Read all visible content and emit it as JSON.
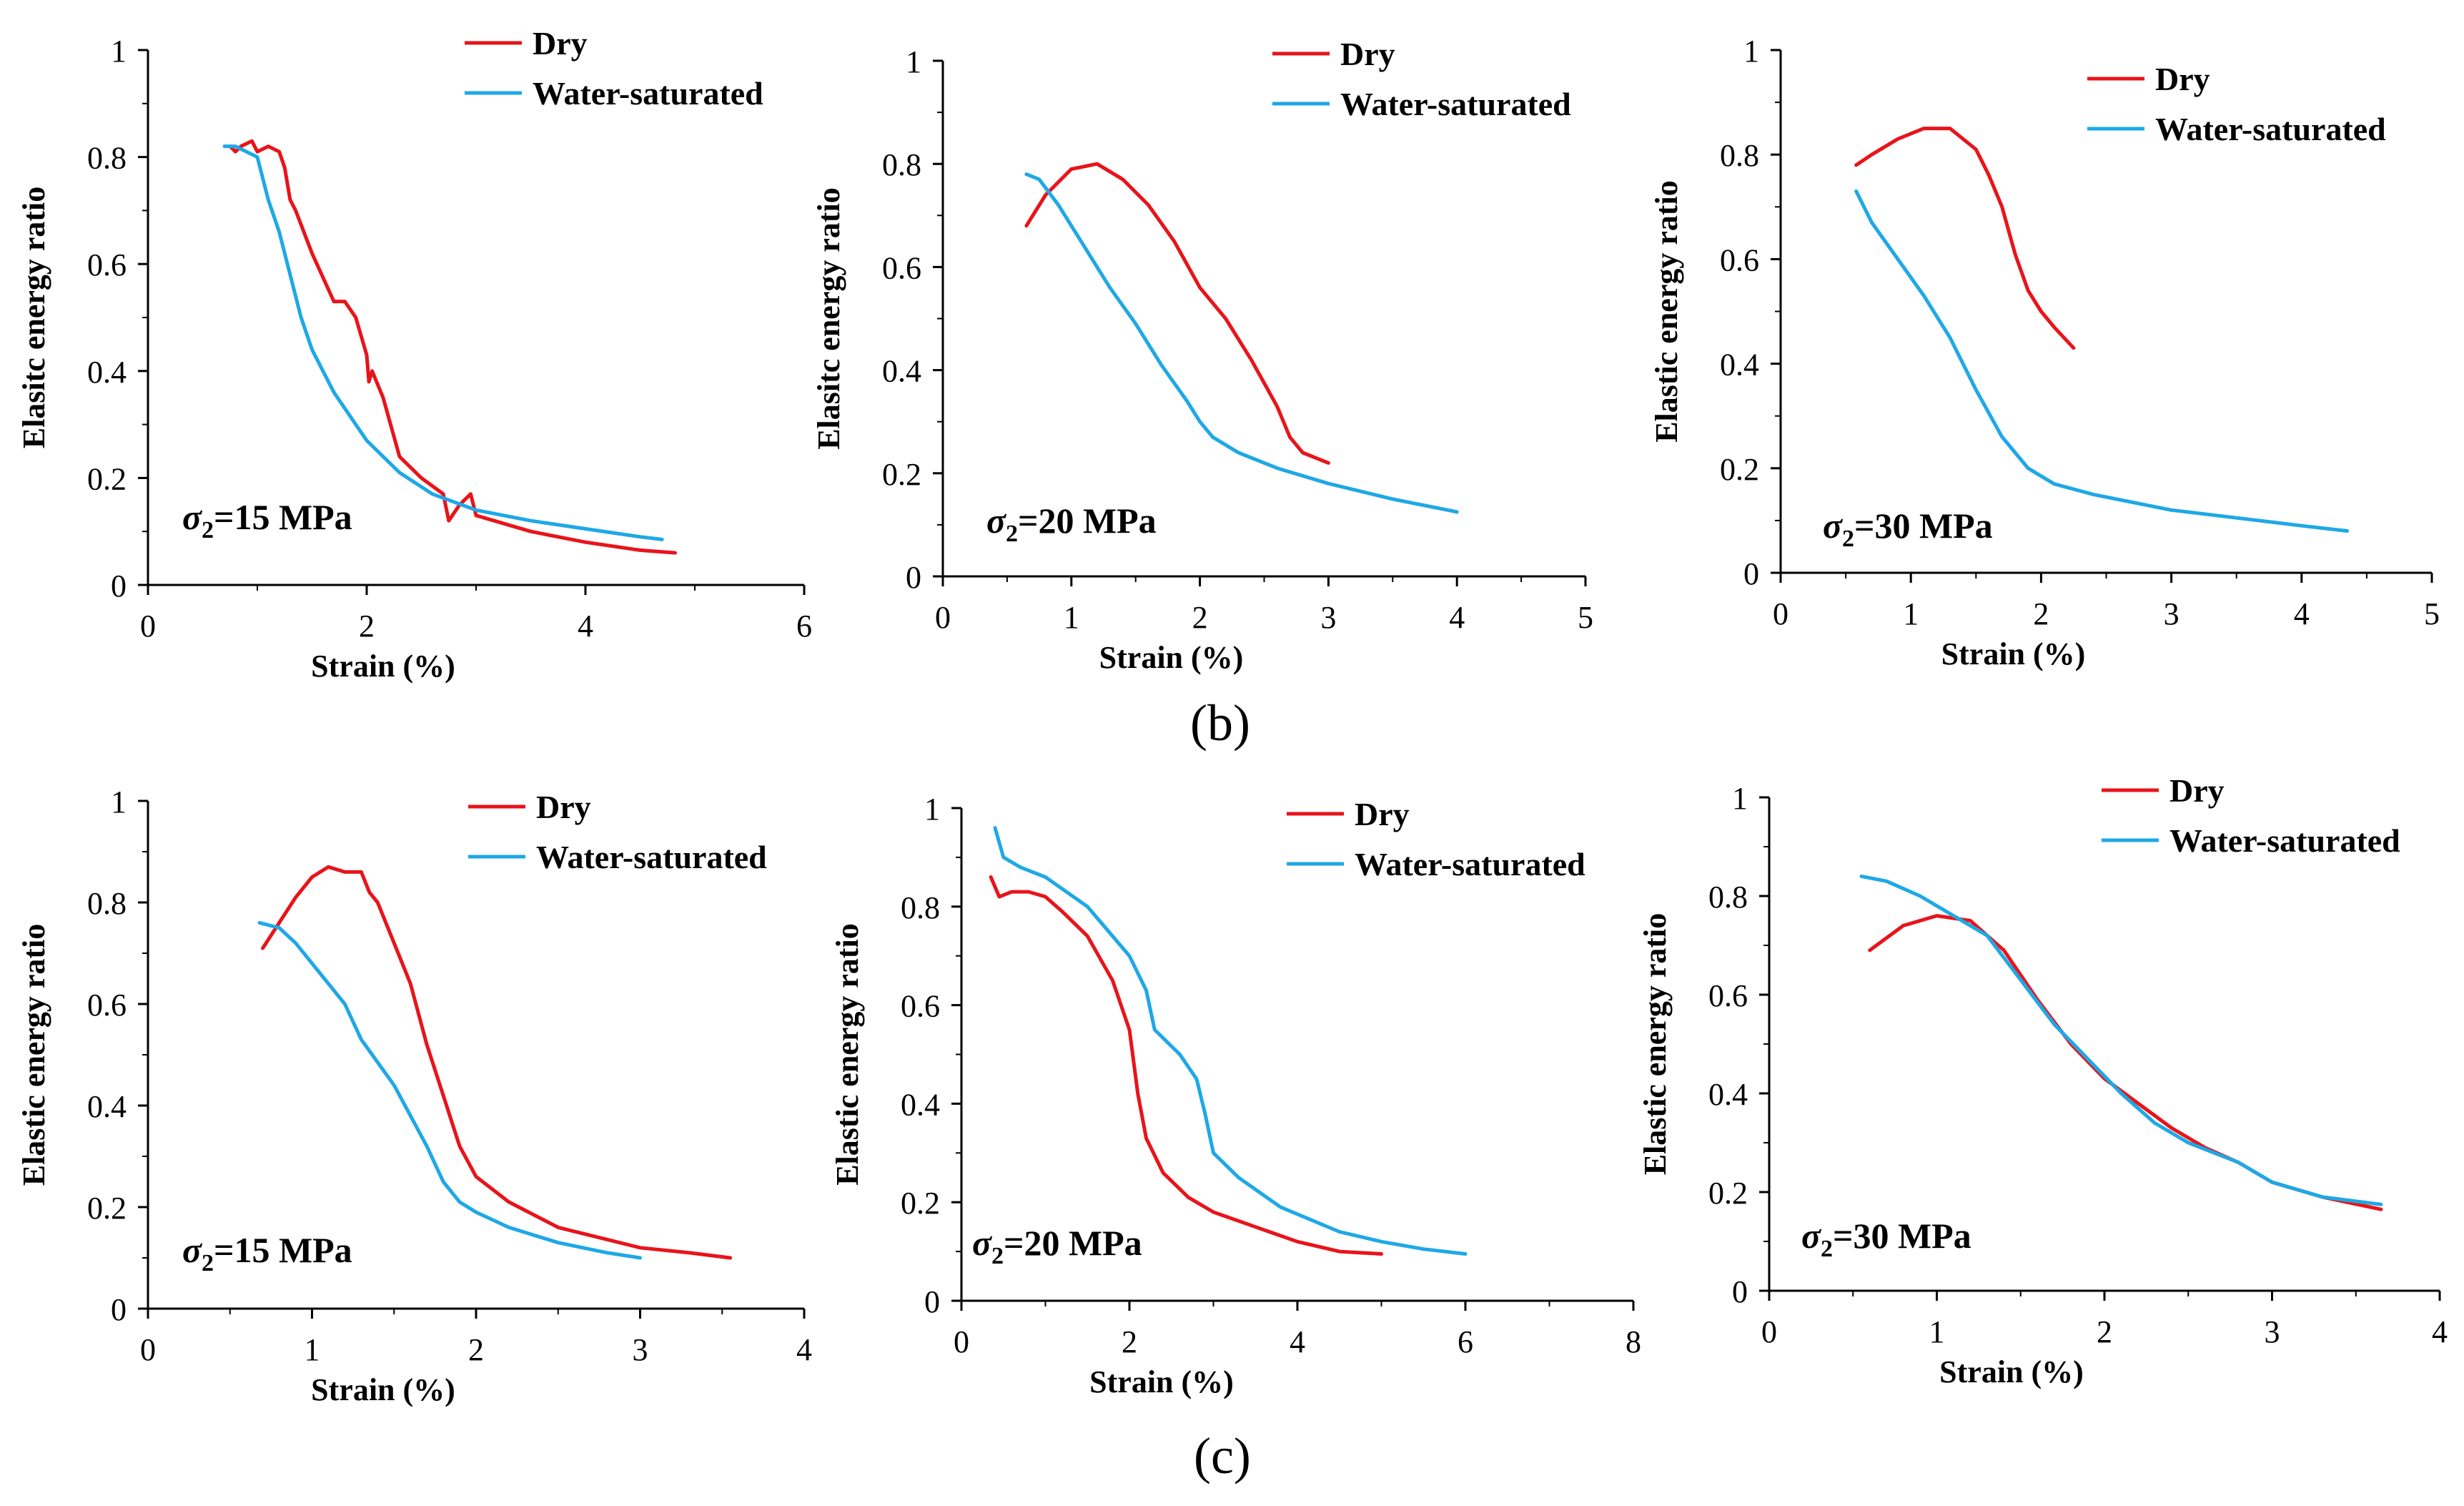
{
  "panel_labels": {
    "b": "(b)",
    "c": "(c)"
  },
  "colors": {
    "dry": "#e8141a",
    "water": "#1ea8e6",
    "axis": "#000000"
  },
  "chart_data": [
    {
      "type": "line",
      "panel": "b",
      "annotation_prefix": "σ",
      "annotation_sub": "2",
      "annotation_value": "=15 MPa",
      "xlabel": "Strain (%)",
      "ylabel": "Elasitc energy ratio",
      "xlim": [
        0,
        6
      ],
      "ylim": [
        0,
        1
      ],
      "xticks": [
        0,
        2,
        4,
        6
      ],
      "yticks": [
        0,
        0.2,
        0.4,
        0.6,
        0.8,
        1
      ],
      "yticklabels": [
        "0",
        "0.2",
        "0.4",
        "0.6",
        "0.8",
        "1"
      ],
      "legend": "top-right",
      "series": [
        {
          "name": "Dry",
          "color_key": "dry",
          "points": [
            [
              0.75,
              0.82
            ],
            [
              0.8,
              0.81
            ],
            [
              0.85,
              0.82
            ],
            [
              0.95,
              0.83
            ],
            [
              1.0,
              0.81
            ],
            [
              1.1,
              0.82
            ],
            [
              1.2,
              0.81
            ],
            [
              1.25,
              0.78
            ],
            [
              1.3,
              0.72
            ],
            [
              1.35,
              0.7
            ],
            [
              1.5,
              0.62
            ],
            [
              1.7,
              0.53
            ],
            [
              1.8,
              0.53
            ],
            [
              1.9,
              0.5
            ],
            [
              2.0,
              0.43
            ],
            [
              2.02,
              0.38
            ],
            [
              2.05,
              0.4
            ],
            [
              2.15,
              0.35
            ],
            [
              2.3,
              0.24
            ],
            [
              2.5,
              0.2
            ],
            [
              2.7,
              0.17
            ],
            [
              2.75,
              0.12
            ],
            [
              2.85,
              0.15
            ],
            [
              2.95,
              0.17
            ],
            [
              3.0,
              0.13
            ],
            [
              3.5,
              0.1
            ],
            [
              4.0,
              0.08
            ],
            [
              4.5,
              0.065
            ],
            [
              4.82,
              0.06
            ]
          ]
        },
        {
          "name": "Water-saturated",
          "color_key": "water",
          "points": [
            [
              0.7,
              0.82
            ],
            [
              0.8,
              0.82
            ],
            [
              0.9,
              0.81
            ],
            [
              1.0,
              0.8
            ],
            [
              1.1,
              0.72
            ],
            [
              1.2,
              0.66
            ],
            [
              1.3,
              0.58
            ],
            [
              1.4,
              0.5
            ],
            [
              1.5,
              0.44
            ],
            [
              1.7,
              0.36
            ],
            [
              2.0,
              0.27
            ],
            [
              2.3,
              0.21
            ],
            [
              2.6,
              0.17
            ],
            [
              3.0,
              0.14
            ],
            [
              3.5,
              0.12
            ],
            [
              4.0,
              0.105
            ],
            [
              4.5,
              0.09
            ],
            [
              4.7,
              0.085
            ]
          ]
        }
      ]
    },
    {
      "type": "line",
      "panel": "b",
      "annotation_prefix": "σ",
      "annotation_sub": "2",
      "annotation_value": "=20 MPa",
      "xlabel": "Strain (%)",
      "ylabel": "Elasitc energy ratio",
      "xlim": [
        0,
        5
      ],
      "ylim": [
        0,
        1
      ],
      "xticks": [
        0,
        1,
        2,
        3,
        4,
        5
      ],
      "yticks": [
        0,
        0.2,
        0.4,
        0.6,
        0.8,
        1
      ],
      "yticklabels": [
        "0",
        "0.2",
        "0.4",
        "0.6",
        "0.8",
        "1"
      ],
      "legend": "top-right",
      "series": [
        {
          "name": "Dry",
          "color_key": "dry",
          "points": [
            [
              0.65,
              0.68
            ],
            [
              0.8,
              0.74
            ],
            [
              1.0,
              0.79
            ],
            [
              1.2,
              0.8
            ],
            [
              1.4,
              0.77
            ],
            [
              1.6,
              0.72
            ],
            [
              1.8,
              0.65
            ],
            [
              2.0,
              0.56
            ],
            [
              2.2,
              0.5
            ],
            [
              2.4,
              0.42
            ],
            [
              2.6,
              0.33
            ],
            [
              2.7,
              0.27
            ],
            [
              2.8,
              0.24
            ],
            [
              3.0,
              0.22
            ]
          ]
        },
        {
          "name": "Water-saturated",
          "color_key": "water",
          "points": [
            [
              0.65,
              0.78
            ],
            [
              0.75,
              0.77
            ],
            [
              0.9,
              0.72
            ],
            [
              1.1,
              0.64
            ],
            [
              1.3,
              0.56
            ],
            [
              1.5,
              0.49
            ],
            [
              1.7,
              0.41
            ],
            [
              1.9,
              0.34
            ],
            [
              2.0,
              0.3
            ],
            [
              2.1,
              0.27
            ],
            [
              2.3,
              0.24
            ],
            [
              2.6,
              0.21
            ],
            [
              3.0,
              0.18
            ],
            [
              3.5,
              0.15
            ],
            [
              4.0,
              0.125
            ]
          ]
        }
      ]
    },
    {
      "type": "line",
      "panel": "b",
      "annotation_prefix": "σ",
      "annotation_sub": "2",
      "annotation_value": "=30 MPa",
      "xlabel": "Strain (%)",
      "ylabel": "Elastic energy ratio",
      "xlim": [
        0,
        5
      ],
      "ylim": [
        0,
        1
      ],
      "xticks": [
        0,
        1,
        2,
        3,
        4,
        5
      ],
      "yticks": [
        0,
        0.2,
        0.4,
        0.6,
        0.8,
        1
      ],
      "yticklabels": [
        "0",
        "0.2",
        "0.4",
        "0.6",
        "0.8",
        "1"
      ],
      "legend": "top-right",
      "series": [
        {
          "name": "Dry",
          "color_key": "dry",
          "points": [
            [
              0.58,
              0.78
            ],
            [
              0.7,
              0.8
            ],
            [
              0.9,
              0.83
            ],
            [
              1.1,
              0.85
            ],
            [
              1.3,
              0.85
            ],
            [
              1.5,
              0.81
            ],
            [
              1.6,
              0.76
            ],
            [
              1.7,
              0.7
            ],
            [
              1.8,
              0.61
            ],
            [
              1.9,
              0.54
            ],
            [
              2.0,
              0.5
            ],
            [
              2.1,
              0.47
            ],
            [
              2.25,
              0.43
            ]
          ]
        },
        {
          "name": "Water-saturated",
          "color_key": "water",
          "points": [
            [
              0.58,
              0.73
            ],
            [
              0.7,
              0.67
            ],
            [
              0.9,
              0.6
            ],
            [
              1.1,
              0.53
            ],
            [
              1.3,
              0.45
            ],
            [
              1.5,
              0.35
            ],
            [
              1.7,
              0.26
            ],
            [
              1.9,
              0.2
            ],
            [
              2.1,
              0.17
            ],
            [
              2.4,
              0.15
            ],
            [
              3.0,
              0.12
            ],
            [
              3.5,
              0.105
            ],
            [
              4.0,
              0.09
            ],
            [
              4.35,
              0.08
            ]
          ]
        }
      ]
    },
    {
      "type": "line",
      "panel": "c",
      "annotation_prefix": "σ",
      "annotation_sub": "2",
      "annotation_value": "=15 MPa",
      "xlabel": "Strain (%)",
      "ylabel": "Elastic energy ratio",
      "xlim": [
        0,
        4
      ],
      "ylim": [
        0,
        1
      ],
      "xticks": [
        0,
        1,
        2,
        3,
        4
      ],
      "yticks": [
        0,
        0.2,
        0.4,
        0.6,
        0.8,
        1
      ],
      "yticklabels": [
        "0",
        "0.2",
        "0.4",
        "0.6",
        "0.8",
        "1"
      ],
      "legend": "top-right",
      "series": [
        {
          "name": "Dry",
          "color_key": "dry",
          "points": [
            [
              0.7,
              0.71
            ],
            [
              0.8,
              0.76
            ],
            [
              0.9,
              0.81
            ],
            [
              1.0,
              0.85
            ],
            [
              1.1,
              0.87
            ],
            [
              1.2,
              0.86
            ],
            [
              1.3,
              0.86
            ],
            [
              1.35,
              0.82
            ],
            [
              1.4,
              0.8
            ],
            [
              1.5,
              0.72
            ],
            [
              1.6,
              0.64
            ],
            [
              1.7,
              0.52
            ],
            [
              1.8,
              0.42
            ],
            [
              1.9,
              0.32
            ],
            [
              2.0,
              0.26
            ],
            [
              2.2,
              0.21
            ],
            [
              2.5,
              0.16
            ],
            [
              3.0,
              0.12
            ],
            [
              3.3,
              0.11
            ],
            [
              3.55,
              0.1
            ]
          ]
        },
        {
          "name": "Water-saturated",
          "color_key": "water",
          "points": [
            [
              0.68,
              0.76
            ],
            [
              0.8,
              0.75
            ],
            [
              0.9,
              0.72
            ],
            [
              1.0,
              0.68
            ],
            [
              1.2,
              0.6
            ],
            [
              1.3,
              0.53
            ],
            [
              1.5,
              0.44
            ],
            [
              1.6,
              0.38
            ],
            [
              1.7,
              0.32
            ],
            [
              1.8,
              0.25
            ],
            [
              1.9,
              0.21
            ],
            [
              2.0,
              0.19
            ],
            [
              2.2,
              0.16
            ],
            [
              2.5,
              0.13
            ],
            [
              2.8,
              0.11
            ],
            [
              3.0,
              0.1
            ]
          ]
        }
      ]
    },
    {
      "type": "line",
      "panel": "c",
      "annotation_prefix": "σ",
      "annotation_sub": "2",
      "annotation_value": "=20 MPa",
      "xlabel": "Strain (%)",
      "ylabel": "Elastic energy ratio",
      "xlim": [
        0,
        8
      ],
      "ylim": [
        0,
        1
      ],
      "xticks": [
        0,
        2,
        4,
        6,
        8
      ],
      "yticks": [
        0,
        0.2,
        0.4,
        0.6,
        0.8,
        1
      ],
      "yticklabels": [
        "0",
        "0.2",
        "0.4",
        "0.6",
        "0.8",
        "1"
      ],
      "legend": "top-right",
      "series": [
        {
          "name": "Dry",
          "color_key": "dry",
          "points": [
            [
              0.35,
              0.86
            ],
            [
              0.45,
              0.82
            ],
            [
              0.6,
              0.83
            ],
            [
              0.8,
              0.83
            ],
            [
              1.0,
              0.82
            ],
            [
              1.2,
              0.79
            ],
            [
              1.5,
              0.74
            ],
            [
              1.8,
              0.65
            ],
            [
              2.0,
              0.55
            ],
            [
              2.1,
              0.42
            ],
            [
              2.2,
              0.33
            ],
            [
              2.4,
              0.26
            ],
            [
              2.7,
              0.21
            ],
            [
              3.0,
              0.18
            ],
            [
              3.5,
              0.15
            ],
            [
              4.0,
              0.12
            ],
            [
              4.5,
              0.1
            ],
            [
              5.0,
              0.095
            ]
          ]
        },
        {
          "name": "Water-saturated",
          "color_key": "water",
          "points": [
            [
              0.4,
              0.96
            ],
            [
              0.5,
              0.9
            ],
            [
              0.7,
              0.88
            ],
            [
              1.0,
              0.86
            ],
            [
              1.5,
              0.8
            ],
            [
              2.0,
              0.7
            ],
            [
              2.2,
              0.63
            ],
            [
              2.3,
              0.55
            ],
            [
              2.6,
              0.5
            ],
            [
              2.8,
              0.45
            ],
            [
              2.9,
              0.38
            ],
            [
              3.0,
              0.3
            ],
            [
              3.3,
              0.25
            ],
            [
              3.8,
              0.19
            ],
            [
              4.5,
              0.14
            ],
            [
              5.0,
              0.12
            ],
            [
              5.5,
              0.105
            ],
            [
              6.0,
              0.095
            ]
          ]
        }
      ]
    },
    {
      "type": "line",
      "panel": "c",
      "annotation_prefix": "σ",
      "annotation_sub": "2",
      "annotation_value": "=30 MPa",
      "xlabel": "Strain (%)",
      "ylabel": "Elastic energy ratio",
      "xlim": [
        0,
        4
      ],
      "ylim": [
        0,
        1
      ],
      "xticks": [
        0,
        1,
        2,
        3,
        4
      ],
      "yticks": [
        0,
        0.2,
        0.4,
        0.6,
        0.8,
        1
      ],
      "yticklabels": [
        "0",
        "0.2",
        "0.4",
        "0.6",
        "0.8",
        "1"
      ],
      "legend": "top-right",
      "series": [
        {
          "name": "Dry",
          "color_key": "dry",
          "points": [
            [
              0.6,
              0.69
            ],
            [
              0.8,
              0.74
            ],
            [
              1.0,
              0.76
            ],
            [
              1.2,
              0.75
            ],
            [
              1.4,
              0.69
            ],
            [
              1.6,
              0.59
            ],
            [
              1.8,
              0.5
            ],
            [
              2.0,
              0.43
            ],
            [
              2.2,
              0.38
            ],
            [
              2.4,
              0.33
            ],
            [
              2.6,
              0.29
            ],
            [
              2.8,
              0.26
            ],
            [
              3.0,
              0.22
            ],
            [
              3.3,
              0.19
            ],
            [
              3.65,
              0.165
            ]
          ]
        },
        {
          "name": "Water-saturated",
          "color_key": "water",
          "points": [
            [
              0.55,
              0.84
            ],
            [
              0.7,
              0.83
            ],
            [
              0.9,
              0.8
            ],
            [
              1.1,
              0.76
            ],
            [
              1.3,
              0.72
            ],
            [
              1.5,
              0.63
            ],
            [
              1.7,
              0.54
            ],
            [
              1.9,
              0.47
            ],
            [
              2.1,
              0.4
            ],
            [
              2.3,
              0.34
            ],
            [
              2.5,
              0.3
            ],
            [
              2.8,
              0.26
            ],
            [
              3.0,
              0.22
            ],
            [
              3.3,
              0.19
            ],
            [
              3.65,
              0.175
            ]
          ]
        }
      ]
    }
  ]
}
